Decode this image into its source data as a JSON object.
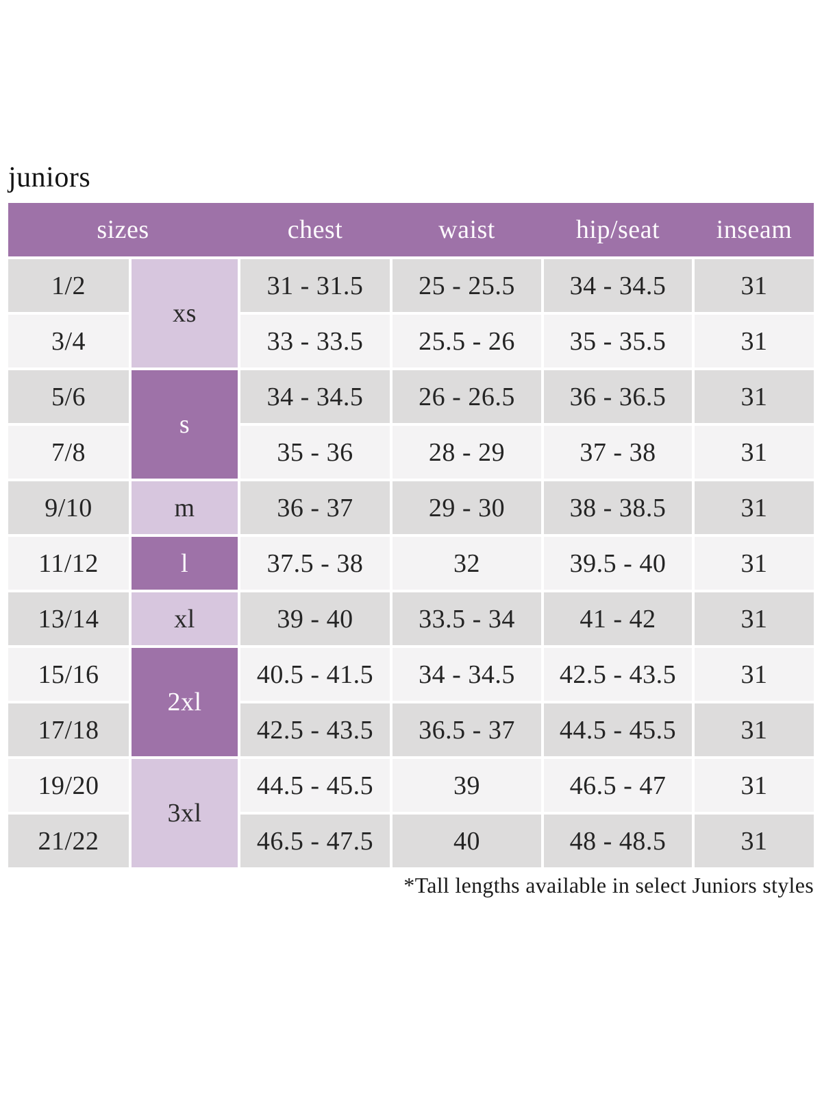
{
  "page": {
    "title": "juniors",
    "footnote": "*Tall lengths available in select Juniors styles"
  },
  "colors": {
    "header_purple": "#9e72a8",
    "light_purple": "#d7c6de",
    "row_gray": "#dddcdc",
    "row_light": "#f4f3f4"
  },
  "table": {
    "headers": [
      "sizes",
      "chest",
      "waist",
      "hip/seat",
      "inseam"
    ],
    "size_groups": [
      {
        "label": "xs",
        "rows_covered": [
          "1/2",
          "3/4"
        ],
        "shade": "light"
      },
      {
        "label": "s",
        "rows_covered": [
          "5/6",
          "7/8"
        ],
        "shade": "dark"
      },
      {
        "label": "m",
        "rows_covered": [
          "9/10"
        ],
        "shade": "light"
      },
      {
        "label": "l",
        "rows_covered": [
          "11/12"
        ],
        "shade": "dark"
      },
      {
        "label": "xl",
        "rows_covered": [
          "13/14"
        ],
        "shade": "light"
      },
      {
        "label": "2xl",
        "rows_covered": [
          "15/16",
          "17/18"
        ],
        "shade": "dark"
      },
      {
        "label": "3xl",
        "rows_covered": [
          "19/20",
          "21/22"
        ],
        "shade": "light"
      }
    ],
    "rows": [
      {
        "size": "1/2",
        "chest": "31 - 31.5",
        "waist": "25 - 25.5",
        "hip_seat": "34 - 34.5",
        "inseam": "31"
      },
      {
        "size": "3/4",
        "chest": "33 - 33.5",
        "waist": "25.5 - 26",
        "hip_seat": "35 - 35.5",
        "inseam": "31"
      },
      {
        "size": "5/6",
        "chest": "34 - 34.5",
        "waist": "26 - 26.5",
        "hip_seat": "36 - 36.5",
        "inseam": "31"
      },
      {
        "size": "7/8",
        "chest": "35 - 36",
        "waist": "28 - 29",
        "hip_seat": "37 - 38",
        "inseam": "31"
      },
      {
        "size": "9/10",
        "chest": "36 - 37",
        "waist": "29 - 30",
        "hip_seat": "38 - 38.5",
        "inseam": "31"
      },
      {
        "size": "11/12",
        "chest": "37.5 - 38",
        "waist": "32",
        "hip_seat": "39.5 - 40",
        "inseam": "31"
      },
      {
        "size": "13/14",
        "chest": "39 - 40",
        "waist": "33.5 - 34",
        "hip_seat": "41 - 42",
        "inseam": "31"
      },
      {
        "size": "15/16",
        "chest": "40.5 - 41.5",
        "waist": "34 - 34.5",
        "hip_seat": "42.5 - 43.5",
        "inseam": "31"
      },
      {
        "size": "17/18",
        "chest": "42.5 - 43.5",
        "waist": "36.5 - 37",
        "hip_seat": "44.5 - 45.5",
        "inseam": "31"
      },
      {
        "size": "19/20",
        "chest": "44.5 - 45.5",
        "waist": "39",
        "hip_seat": "46.5 - 47",
        "inseam": "31"
      },
      {
        "size": "21/22",
        "chest": "46.5 - 47.5",
        "waist": "40",
        "hip_seat": "48 - 48.5",
        "inseam": "31"
      }
    ]
  }
}
